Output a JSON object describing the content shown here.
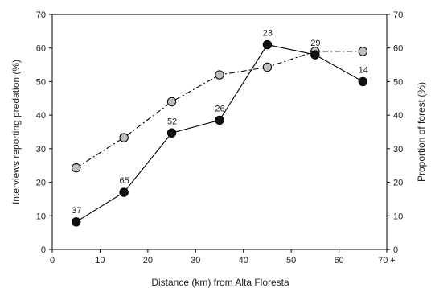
{
  "chart_data": {
    "type": "line",
    "title": "",
    "xlabel": "Distance (km) from Alta Floresta",
    "ylabel_left": "Interviews reporting predation (%)",
    "ylabel_right": "Proportion of forest (%)",
    "xlim": [
      0,
      70
    ],
    "ylim": [
      0,
      70
    ],
    "x_ticks": [
      0,
      10,
      20,
      30,
      40,
      50,
      60,
      70
    ],
    "x_tick_labels": [
      "0",
      "10",
      "20",
      "30",
      "40",
      "50",
      "60",
      "70 +"
    ],
    "y_ticks": [
      0,
      10,
      20,
      30,
      40,
      50,
      60,
      70
    ],
    "y_tick_labels": [
      "0",
      "10",
      "20",
      "30",
      "40",
      "50",
      "60",
      "70"
    ],
    "grid": false,
    "series": [
      {
        "axis": "left",
        "color": "#000000",
        "marker_fill": "#111111",
        "line_style": "solid",
        "x": [
          5,
          15,
          25,
          35,
          45,
          55,
          65
        ],
        "y": [
          8.2,
          17,
          34.7,
          38.5,
          61,
          58,
          50
        ],
        "point_labels": [
          "37",
          "65",
          "52",
          "26",
          "23",
          "29",
          "14"
        ]
      },
      {
        "axis": "right",
        "color": "#000000",
        "marker_fill": "#bdbdbd",
        "line_style": "dash-dot",
        "x": [
          5,
          15,
          25,
          35,
          45,
          55,
          65
        ],
        "y": [
          24.3,
          33.3,
          44,
          52,
          54.3,
          59,
          59
        ],
        "point_labels": []
      }
    ]
  }
}
